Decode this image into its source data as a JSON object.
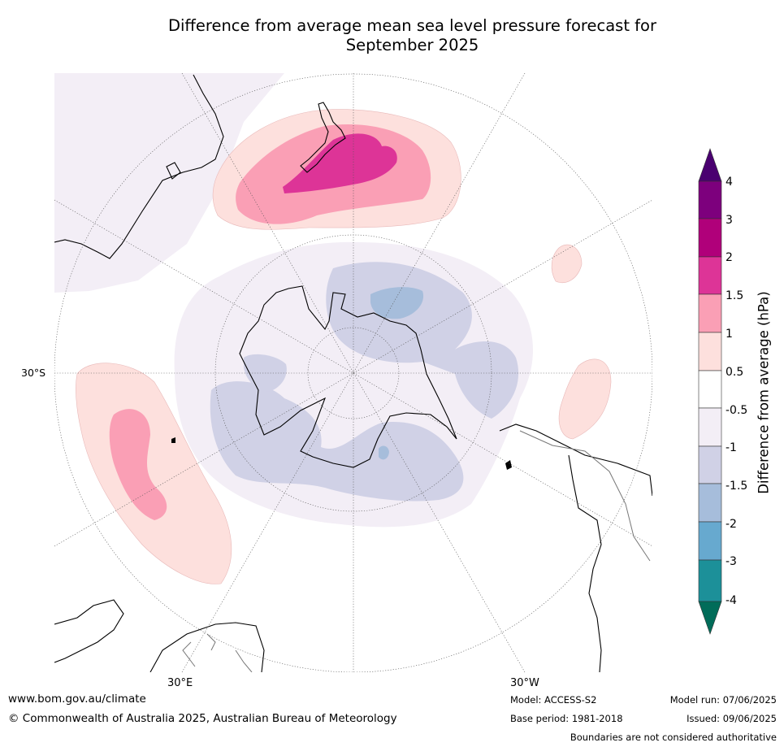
{
  "title": {
    "line1": "Difference from average mean sea level pressure forecast for",
    "line2": "September 2025"
  },
  "map": {
    "projection": "south-polar-stereographic",
    "graticule_labels": {
      "lat": "30°S",
      "lon_left": "30°E",
      "lon_right": "30°W"
    }
  },
  "legend": {
    "label": "Difference from average (hPa)",
    "ticks": [
      "4",
      "3",
      "2",
      "1.5",
      "1",
      "0.5",
      "-0.5",
      "-1",
      "-1.5",
      "-2",
      "-3",
      "-4"
    ],
    "colors": {
      "above_4": "#4a0070",
      "3_to_4": "#7d007d",
      "2_to_3": "#b0007a",
      "1.5_to_2": "#dd3497",
      "1_to_1.5": "#fa9fb5",
      "0.5_to_1": "#fde0dd",
      "-0.5_to_0.5": "#ffffff",
      "-1_to_-0.5": "#f3eef6",
      "-1.5_to_-1": "#d0d1e6",
      "-2_to_-1.5": "#a6bddb",
      "-3_to_-2": "#67a9cf",
      "-4_to_-3": "#1c9099",
      "below_-4": "#016c59"
    }
  },
  "footer": {
    "url": "www.bom.gov.au/climate",
    "copyright": "© Commonwealth of Australia 2025, Australian Bureau of Meteorology",
    "model": "Model: ACCESS-S2",
    "base_period": "Base period: 1981-2018",
    "model_run": "Model run: 07/06/2025",
    "issued": "Issued: 09/06/2025",
    "disclaimer": "Boundaries are not considered authoritative"
  }
}
